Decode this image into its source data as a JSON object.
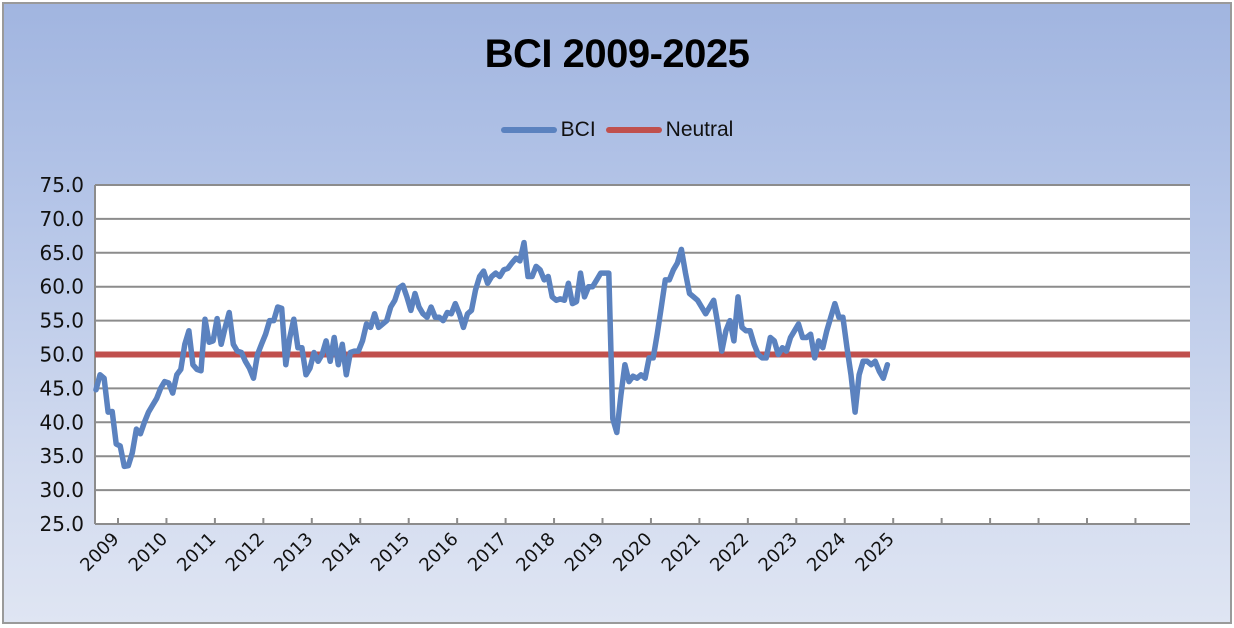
{
  "chart_data": {
    "type": "line",
    "title": "BCI 2009-2025",
    "xlabel": "",
    "ylabel": "",
    "ylim": [
      25.0,
      75.0
    ],
    "yticks": [
      "25.0",
      "30.0",
      "35.0",
      "40.0",
      "45.0",
      "50.0",
      "55.0",
      "60.0",
      "65.0",
      "70.0",
      "75.0"
    ],
    "grid": true,
    "legend_position": "top",
    "categories": [
      "2009",
      "2010",
      "2011",
      "2012",
      "2013",
      "2014",
      "2015",
      "2016",
      "2017",
      "2018",
      "2019",
      "2020",
      "2021",
      "2022",
      "2023",
      "2024",
      "2025"
    ],
    "x_axis_slots": 22,
    "series": [
      {
        "name": "BCI",
        "color": "#5b82bf",
        "frequency": "monthly (approx.)",
        "values": [
          44.8,
          47.0,
          46.5,
          41.5,
          41.6,
          36.8,
          36.5,
          33.5,
          33.6,
          35.5,
          39.0,
          38.3,
          40.0,
          41.5,
          42.5,
          43.5,
          45.0,
          46.0,
          45.8,
          44.3,
          47.0,
          47.8,
          51.5,
          53.5,
          48.5,
          47.8,
          47.6,
          55.2,
          51.8,
          52.0,
          55.3,
          51.5,
          54.0,
          56.2,
          51.5,
          50.5,
          50.3,
          49.0,
          48.0,
          46.5,
          50.0,
          51.5,
          53.0,
          55.0,
          55.0,
          57.0,
          56.8,
          48.5,
          52.5,
          55.2,
          51.0,
          51.0,
          47.0,
          48.0,
          50.3,
          49.0,
          50.0,
          52.0,
          49.0,
          52.5,
          48.5,
          51.5,
          47.0,
          50.3,
          50.5,
          50.5,
          52.0,
          54.5,
          54.0,
          56.0,
          54.0,
          54.5,
          55.0,
          57.0,
          58.0,
          59.8,
          60.2,
          58.5,
          56.5,
          59.0,
          57.0,
          56.0,
          55.5,
          57.0,
          55.5,
          55.5,
          55.0,
          56.2,
          56.0,
          57.5,
          56.0,
          54.0,
          56.0,
          56.5,
          59.5,
          61.5,
          62.3,
          60.5,
          61.5,
          62.0,
          61.5,
          62.5,
          62.7,
          63.5,
          64.2,
          63.8,
          66.5,
          61.5,
          61.5,
          63.0,
          62.5,
          61.0,
          61.5,
          58.5,
          58.0,
          58.2,
          58.0,
          60.5,
          57.5,
          57.8,
          62.0,
          58.5,
          60.0,
          60.0,
          61.0,
          62.0,
          62.0,
          62.0,
          40.5,
          38.5,
          44.0,
          48.5,
          46.0,
          46.8,
          46.5,
          47.0,
          46.5,
          49.5,
          49.5,
          53.0,
          57.0,
          61.0,
          61.0,
          62.5,
          63.5,
          65.5,
          62.0,
          59.0,
          58.5,
          58.0,
          57.0,
          56.0,
          57.0,
          58.0,
          54.5,
          50.5,
          53.5,
          55.0,
          52.0,
          58.5,
          54.0,
          53.5,
          53.5,
          51.5,
          50.0,
          49.5,
          49.5,
          52.5,
          52.0,
          50.0,
          51.0,
          50.5,
          52.5,
          53.5,
          54.5,
          52.5,
          52.5,
          53.0,
          49.5,
          52.0,
          51.0,
          53.5,
          55.5,
          57.5,
          55.5,
          55.5,
          51.0,
          47.0,
          41.5,
          47.0,
          49.0,
          49.0,
          48.5,
          49.0,
          47.5,
          46.5,
          48.5
        ]
      },
      {
        "name": "Neutral",
        "color": "#c0504d",
        "constant": 50.0
      }
    ]
  },
  "legend": {
    "items": [
      {
        "label": "BCI",
        "color": "#5b82bf"
      },
      {
        "label": "Neutral",
        "color": "#c0504d"
      }
    ]
  }
}
